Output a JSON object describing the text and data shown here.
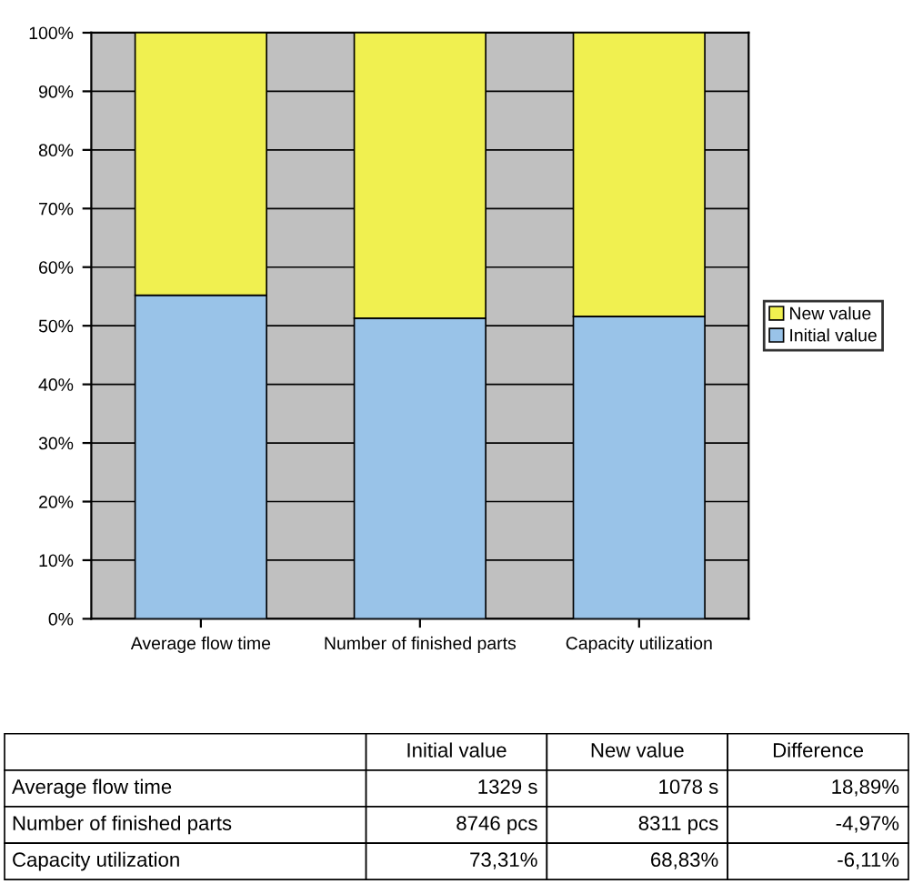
{
  "chart_data": {
    "type": "bar",
    "stacked": true,
    "categories": [
      "Average flow time",
      "Number of finished parts",
      "Capacity utilization"
    ],
    "series": [
      {
        "name": "Initial value",
        "color": "#99c3e8",
        "values": [
          55.2,
          51.3,
          51.6
        ]
      },
      {
        "name": "New value",
        "color": "#f0f050",
        "values": [
          44.8,
          48.7,
          48.4
        ]
      }
    ],
    "ylim": [
      0,
      100
    ],
    "yticks": [
      {
        "value": 0,
        "label": "0%"
      },
      {
        "value": 10,
        "label": "10%"
      },
      {
        "value": 20,
        "label": "20%"
      },
      {
        "value": 30,
        "label": "30%"
      },
      {
        "value": 40,
        "label": "40%"
      },
      {
        "value": 50,
        "label": "50%"
      },
      {
        "value": 60,
        "label": "60%"
      },
      {
        "value": 70,
        "label": "70%"
      },
      {
        "value": 80,
        "label": "80%"
      },
      {
        "value": 90,
        "label": "90%"
      },
      {
        "value": 100,
        "label": "100%"
      }
    ],
    "grid": "y",
    "legend": "right",
    "annotations": [
      "Initial value",
      "New value",
      "Difference",
      "Average flow time",
      "1329 s",
      "1078 s",
      "18,89%",
      "Number of finished parts",
      "8746 pcs",
      "8311 pcs",
      "-4,97%",
      "Capacity utilization",
      "73,31%",
      "68,83%",
      "-6,11%"
    ]
  }
}
